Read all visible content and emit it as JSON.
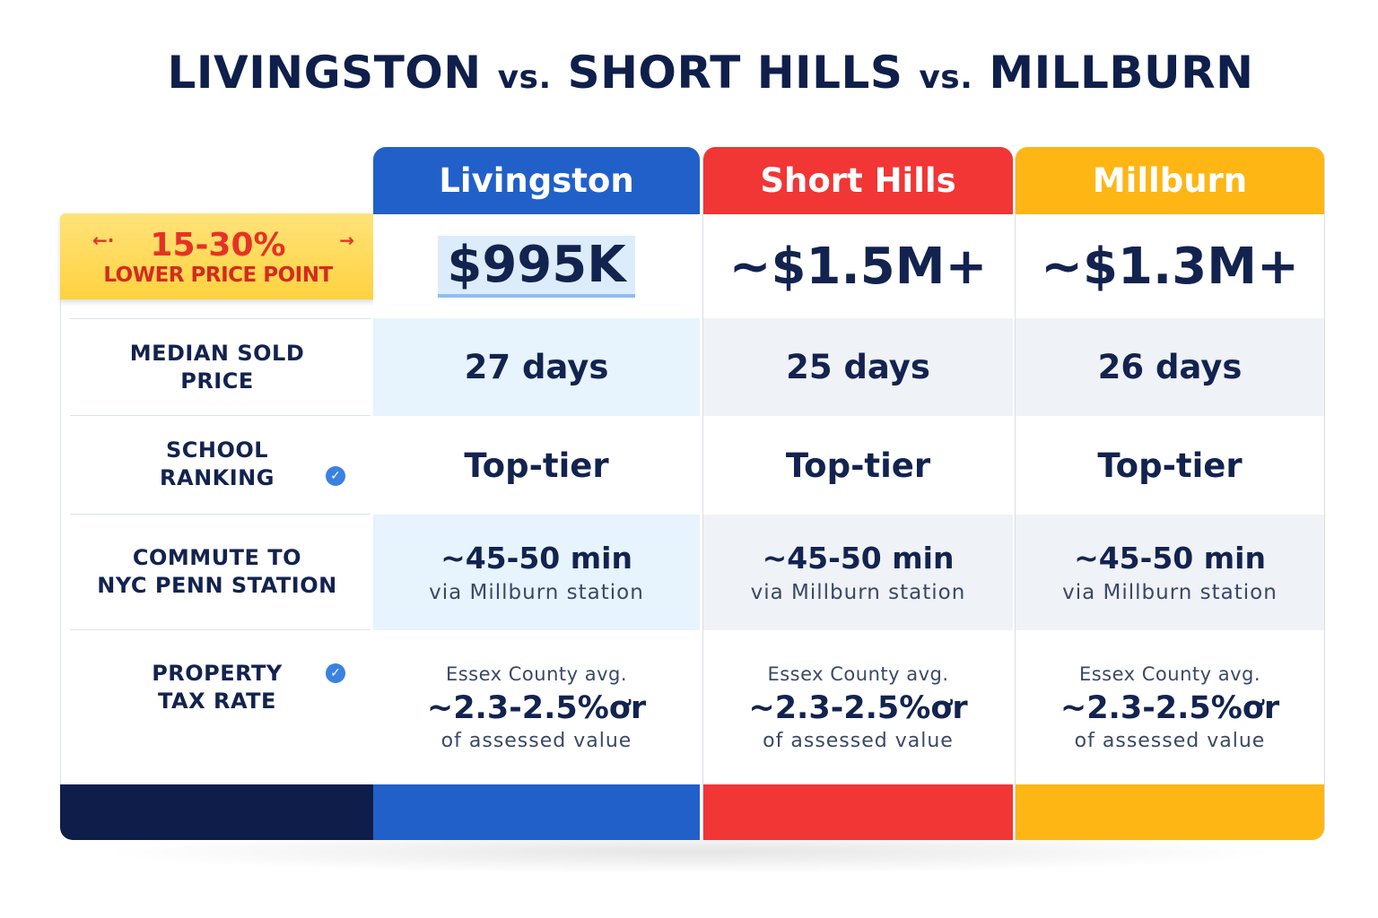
{
  "title": {
    "part1": "LIVINGSTON",
    "vs1": "vs.",
    "part2": "SHORT HILLS",
    "vs2": "vs.",
    "part3": "MILLBURN"
  },
  "badge": {
    "big": "15-30%",
    "small": "LOWER PRICE POINT"
  },
  "row_labels": {
    "median_sold_price": [
      "MEDIAN SOLD",
      "PRICE"
    ],
    "school_ranking": [
      "SCHOOL",
      "RANKING"
    ],
    "commute": [
      "COMMUTE TO",
      "NYC PENN STATION"
    ],
    "property_tax": [
      "PROPERTY",
      "TAX RATE"
    ]
  },
  "colors": {
    "livingston": "#2160c9",
    "short_hills": "#f23535",
    "millburn": "#fdb614",
    "navy": "#0e1d4a"
  },
  "chart_data": {
    "type": "table",
    "title": "LIVINGSTON vs. SHORT HILLS vs. MILLBURN",
    "columns": [
      {
        "name": "Livingston",
        "price": "$995K",
        "days": "27 days",
        "school": "Top-tier",
        "commute_main": "~45-50 min",
        "commute_sub": "via Millburn station",
        "tax_top": "Essex County avg.",
        "tax_main": "~2.3-2.5%ơr",
        "tax_sub": "of assessed value"
      },
      {
        "name": "Short Hills",
        "price": "~$1.5M+",
        "days": "25 days",
        "school": "Top-tier",
        "commute_main": "~45-50 min",
        "commute_sub": "via Millburn station",
        "tax_top": "Essex County avg.",
        "tax_main": "~2.3-2.5%ơr",
        "tax_sub": "of assessed value"
      },
      {
        "name": "Millburn",
        "price": "~$1.3M+",
        "days": "26 days",
        "school": "Top-tier",
        "commute_main": "~45-50 min",
        "commute_sub": "via Millburn station",
        "tax_top": "Essex County avg.",
        "tax_main": "~2.3-2.5%ơr",
        "tax_sub": "of assessed value"
      }
    ]
  }
}
